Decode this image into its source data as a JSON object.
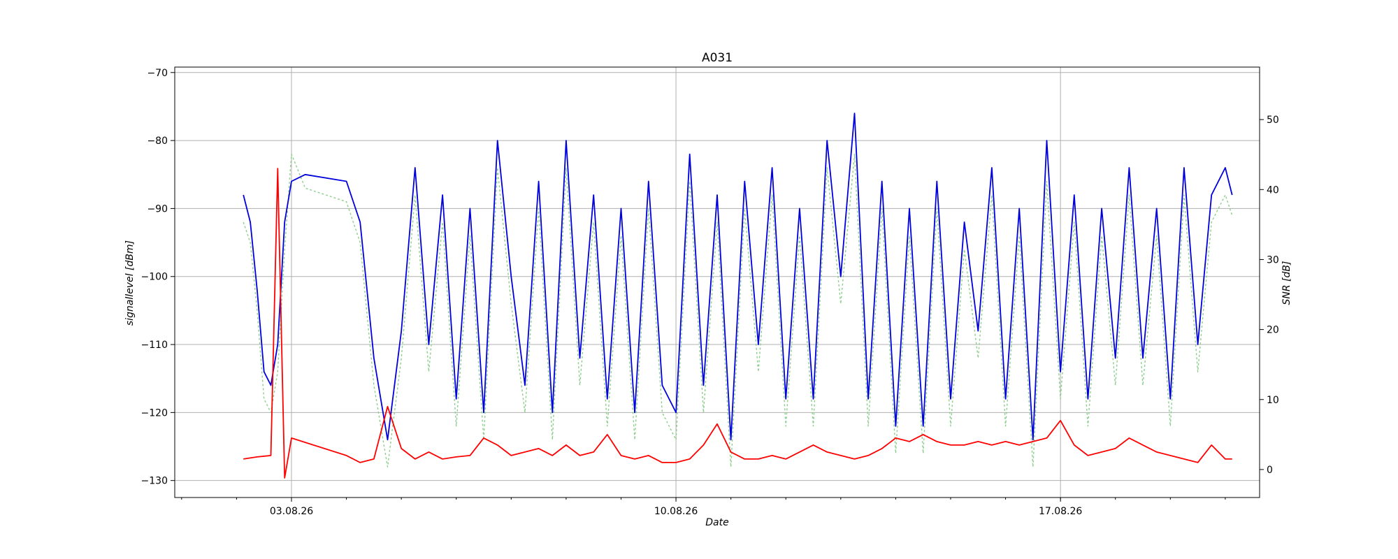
{
  "chart_data": {
    "type": "line",
    "title": "A031",
    "xlabel": "Date",
    "ylabel_left": "signallevel [dBm]",
    "ylabel_right": "SNR [dB]",
    "x_range": [
      "2026-07-31T21:00",
      "2026-08-20T15:00"
    ],
    "ylim_left": [
      -132.5,
      -69.2
    ],
    "ylim_right": [
      -4.0,
      57.5
    ],
    "x_ticks": [
      {
        "date": "2026-08-03",
        "label": "03.08.26"
      },
      {
        "date": "2026-08-10",
        "label": "10.08.26"
      },
      {
        "date": "2026-08-17",
        "label": "17.08.26"
      }
    ],
    "y_ticks_left": [
      -70,
      -80,
      -90,
      -100,
      -110,
      -120,
      -130
    ],
    "y_ticks_right": [
      0,
      10,
      20,
      30,
      40,
      50
    ],
    "grid": true,
    "series_style": {
      "signal_color": "#0000dd",
      "signal_min_color": "#8ccf8c",
      "snr_color": "#ff0000"
    },
    "series": [
      {
        "axis": "left",
        "x": [
          "2026-08-02T03:00",
          "2026-08-02T06:00",
          "2026-08-02T09:00",
          "2026-08-02T12:00",
          "2026-08-02T15:00",
          "2026-08-02T18:00",
          "2026-08-02T21:00",
          "2026-08-03T00:00",
          "2026-08-03T06:00",
          "2026-08-04T00:00",
          "2026-08-04T06:00",
          "2026-08-04T12:00",
          "2026-08-04T18:00",
          "2026-08-05T00:00",
          "2026-08-05T06:00",
          "2026-08-05T12:00",
          "2026-08-05T18:00",
          "2026-08-06T00:00",
          "2026-08-06T06:00",
          "2026-08-06T12:00",
          "2026-08-06T18:00",
          "2026-08-07T00:00",
          "2026-08-07T06:00",
          "2026-08-07T12:00",
          "2026-08-07T18:00",
          "2026-08-08T00:00",
          "2026-08-08T06:00",
          "2026-08-08T12:00",
          "2026-08-08T18:00",
          "2026-08-09T00:00",
          "2026-08-09T06:00",
          "2026-08-09T12:00",
          "2026-08-09T18:00",
          "2026-08-10T00:00",
          "2026-08-10T06:00",
          "2026-08-10T12:00",
          "2026-08-10T18:00",
          "2026-08-11T00:00",
          "2026-08-11T06:00",
          "2026-08-11T12:00",
          "2026-08-11T18:00",
          "2026-08-12T00:00",
          "2026-08-12T06:00",
          "2026-08-12T12:00",
          "2026-08-12T18:00",
          "2026-08-13T00:00",
          "2026-08-13T06:00",
          "2026-08-13T12:00",
          "2026-08-13T18:00",
          "2026-08-14T00:00",
          "2026-08-14T06:00",
          "2026-08-14T12:00",
          "2026-08-14T18:00",
          "2026-08-15T00:00",
          "2026-08-15T06:00",
          "2026-08-15T12:00",
          "2026-08-15T18:00",
          "2026-08-16T00:00",
          "2026-08-16T06:00",
          "2026-08-16T12:00",
          "2026-08-16T18:00",
          "2026-08-17T00:00",
          "2026-08-17T06:00",
          "2026-08-17T12:00",
          "2026-08-17T18:00",
          "2026-08-18T00:00",
          "2026-08-18T06:00",
          "2026-08-18T12:00",
          "2026-08-18T18:00",
          "2026-08-19T00:00",
          "2026-08-19T06:00",
          "2026-08-19T12:00",
          "2026-08-19T18:00",
          "2026-08-20T00:00",
          "2026-08-20T03:00"
        ],
        "y": [
          -88,
          -92,
          -102,
          -114,
          -116,
          -110,
          -92,
          -86,
          -85,
          -86,
          -92,
          -112,
          -124,
          -108,
          -84,
          -110,
          -88,
          -118,
          -90,
          -120,
          -80,
          -100,
          -116,
          -86,
          -120,
          -80,
          -112,
          -88,
          -118,
          -90,
          -120,
          -86,
          -116,
          -120,
          -82,
          -116,
          -88,
          -124,
          -86,
          -110,
          -84,
          -118,
          -90,
          -118,
          -80,
          -100,
          -76,
          -118,
          -86,
          -122,
          -90,
          -122,
          -86,
          -118,
          -92,
          -108,
          -84,
          -118,
          -90,
          -124,
          -80,
          -114,
          -88,
          -118,
          -90,
          -112,
          -84,
          -112,
          -90,
          -118,
          -84,
          -110,
          -88,
          -84,
          -88
        ]
      },
      {
        "axis": "left",
        "x": [
          "2026-08-02T03:00",
          "2026-08-02T06:00",
          "2026-08-02T09:00",
          "2026-08-02T12:00",
          "2026-08-02T15:00",
          "2026-08-02T18:00",
          "2026-08-02T21:00",
          "2026-08-03T00:00",
          "2026-08-03T06:00",
          "2026-08-04T00:00",
          "2026-08-04T06:00",
          "2026-08-04T12:00",
          "2026-08-04T18:00",
          "2026-08-05T00:00",
          "2026-08-05T06:00",
          "2026-08-05T12:00",
          "2026-08-05T18:00",
          "2026-08-06T00:00",
          "2026-08-06T06:00",
          "2026-08-06T12:00",
          "2026-08-06T18:00",
          "2026-08-07T00:00",
          "2026-08-07T06:00",
          "2026-08-07T12:00",
          "2026-08-07T18:00",
          "2026-08-08T00:00",
          "2026-08-08T06:00",
          "2026-08-08T12:00",
          "2026-08-08T18:00",
          "2026-08-09T00:00",
          "2026-08-09T06:00",
          "2026-08-09T12:00",
          "2026-08-09T18:00",
          "2026-08-10T00:00",
          "2026-08-10T06:00",
          "2026-08-10T12:00",
          "2026-08-10T18:00",
          "2026-08-11T00:00",
          "2026-08-11T06:00",
          "2026-08-11T12:00",
          "2026-08-11T18:00",
          "2026-08-12T00:00",
          "2026-08-12T06:00",
          "2026-08-12T12:00",
          "2026-08-12T18:00",
          "2026-08-13T00:00",
          "2026-08-13T06:00",
          "2026-08-13T12:00",
          "2026-08-13T18:00",
          "2026-08-14T00:00",
          "2026-08-14T06:00",
          "2026-08-14T12:00",
          "2026-08-14T18:00",
          "2026-08-15T00:00",
          "2026-08-15T06:00",
          "2026-08-15T12:00",
          "2026-08-15T18:00",
          "2026-08-16T00:00",
          "2026-08-16T06:00",
          "2026-08-16T12:00",
          "2026-08-16T18:00",
          "2026-08-17T00:00",
          "2026-08-17T06:00",
          "2026-08-17T12:00",
          "2026-08-17T18:00",
          "2026-08-18T00:00",
          "2026-08-18T06:00",
          "2026-08-18T12:00",
          "2026-08-18T18:00",
          "2026-08-19T00:00",
          "2026-08-19T06:00",
          "2026-08-19T12:00",
          "2026-08-19T18:00",
          "2026-08-20T00:00",
          "2026-08-20T03:00"
        ],
        "y": [
          -92,
          -95,
          -105,
          -118,
          -120,
          -114,
          -96,
          -82,
          -87,
          -89,
          -95,
          -116,
          -128,
          -112,
          -88,
          -114,
          -92,
          -122,
          -94,
          -124,
          -84,
          -104,
          -120,
          -90,
          -124,
          -84,
          -116,
          -92,
          -122,
          -94,
          -124,
          -90,
          -120,
          -124,
          -86,
          -120,
          -92,
          -128,
          -90,
          -114,
          -88,
          -122,
          -94,
          -122,
          -84,
          -104,
          -82,
          -122,
          -90,
          -126,
          -94,
          -126,
          -90,
          -122,
          -96,
          -112,
          -88,
          -122,
          -94,
          -128,
          -86,
          -118,
          -92,
          -122,
          -94,
          -116,
          -88,
          -116,
          -94,
          -122,
          -88,
          -114,
          -92,
          -88,
          -91
        ]
      },
      {
        "axis": "right",
        "x": [
          "2026-08-02T03:00",
          "2026-08-02T09:00",
          "2026-08-02T15:00",
          "2026-08-02T18:00",
          "2026-08-02T21:00",
          "2026-08-03T00:00",
          "2026-08-04T00:00",
          "2026-08-04T06:00",
          "2026-08-04T12:00",
          "2026-08-04T18:00",
          "2026-08-05T00:00",
          "2026-08-05T06:00",
          "2026-08-05T12:00",
          "2026-08-05T18:00",
          "2026-08-06T00:00",
          "2026-08-06T06:00",
          "2026-08-06T12:00",
          "2026-08-06T18:00",
          "2026-08-07T00:00",
          "2026-08-07T06:00",
          "2026-08-07T12:00",
          "2026-08-07T18:00",
          "2026-08-08T00:00",
          "2026-08-08T06:00",
          "2026-08-08T12:00",
          "2026-08-08T18:00",
          "2026-08-09T00:00",
          "2026-08-09T06:00",
          "2026-08-09T12:00",
          "2026-08-09T18:00",
          "2026-08-10T00:00",
          "2026-08-10T06:00",
          "2026-08-10T12:00",
          "2026-08-10T18:00",
          "2026-08-11T00:00",
          "2026-08-11T06:00",
          "2026-08-11T12:00",
          "2026-08-11T18:00",
          "2026-08-12T00:00",
          "2026-08-12T06:00",
          "2026-08-12T12:00",
          "2026-08-12T18:00",
          "2026-08-13T00:00",
          "2026-08-13T06:00",
          "2026-08-13T12:00",
          "2026-08-13T18:00",
          "2026-08-14T00:00",
          "2026-08-14T06:00",
          "2026-08-14T12:00",
          "2026-08-14T18:00",
          "2026-08-15T00:00",
          "2026-08-15T06:00",
          "2026-08-15T12:00",
          "2026-08-15T18:00",
          "2026-08-16T00:00",
          "2026-08-16T06:00",
          "2026-08-16T12:00",
          "2026-08-16T18:00",
          "2026-08-17T00:00",
          "2026-08-17T06:00",
          "2026-08-17T12:00",
          "2026-08-17T18:00",
          "2026-08-18T00:00",
          "2026-08-18T06:00",
          "2026-08-18T12:00",
          "2026-08-18T18:00",
          "2026-08-19T00:00",
          "2026-08-19T06:00",
          "2026-08-19T12:00",
          "2026-08-19T18:00",
          "2026-08-20T00:00",
          "2026-08-20T03:00"
        ],
        "y": [
          1.5,
          1.8,
          2.0,
          43.0,
          -1.2,
          4.5,
          2.0,
          1.0,
          1.5,
          9.0,
          3.0,
          1.5,
          2.5,
          1.5,
          1.8,
          2.0,
          4.5,
          3.5,
          2.0,
          2.5,
          3.0,
          2.0,
          3.5,
          2.0,
          2.5,
          5.0,
          2.0,
          1.5,
          2.0,
          1.0,
          1.0,
          1.5,
          3.5,
          6.5,
          2.5,
          1.5,
          1.5,
          2.0,
          1.5,
          2.5,
          3.5,
          2.5,
          2.0,
          1.5,
          2.0,
          3.0,
          4.5,
          4.0,
          5.0,
          4.0,
          3.5,
          3.5,
          4.0,
          3.5,
          4.0,
          3.5,
          4.0,
          4.5,
          7.0,
          3.5,
          2.0,
          2.5,
          3.0,
          4.5,
          3.5,
          2.5,
          2.0,
          1.5,
          1.0,
          3.5,
          1.5,
          1.5
        ]
      }
    ]
  }
}
